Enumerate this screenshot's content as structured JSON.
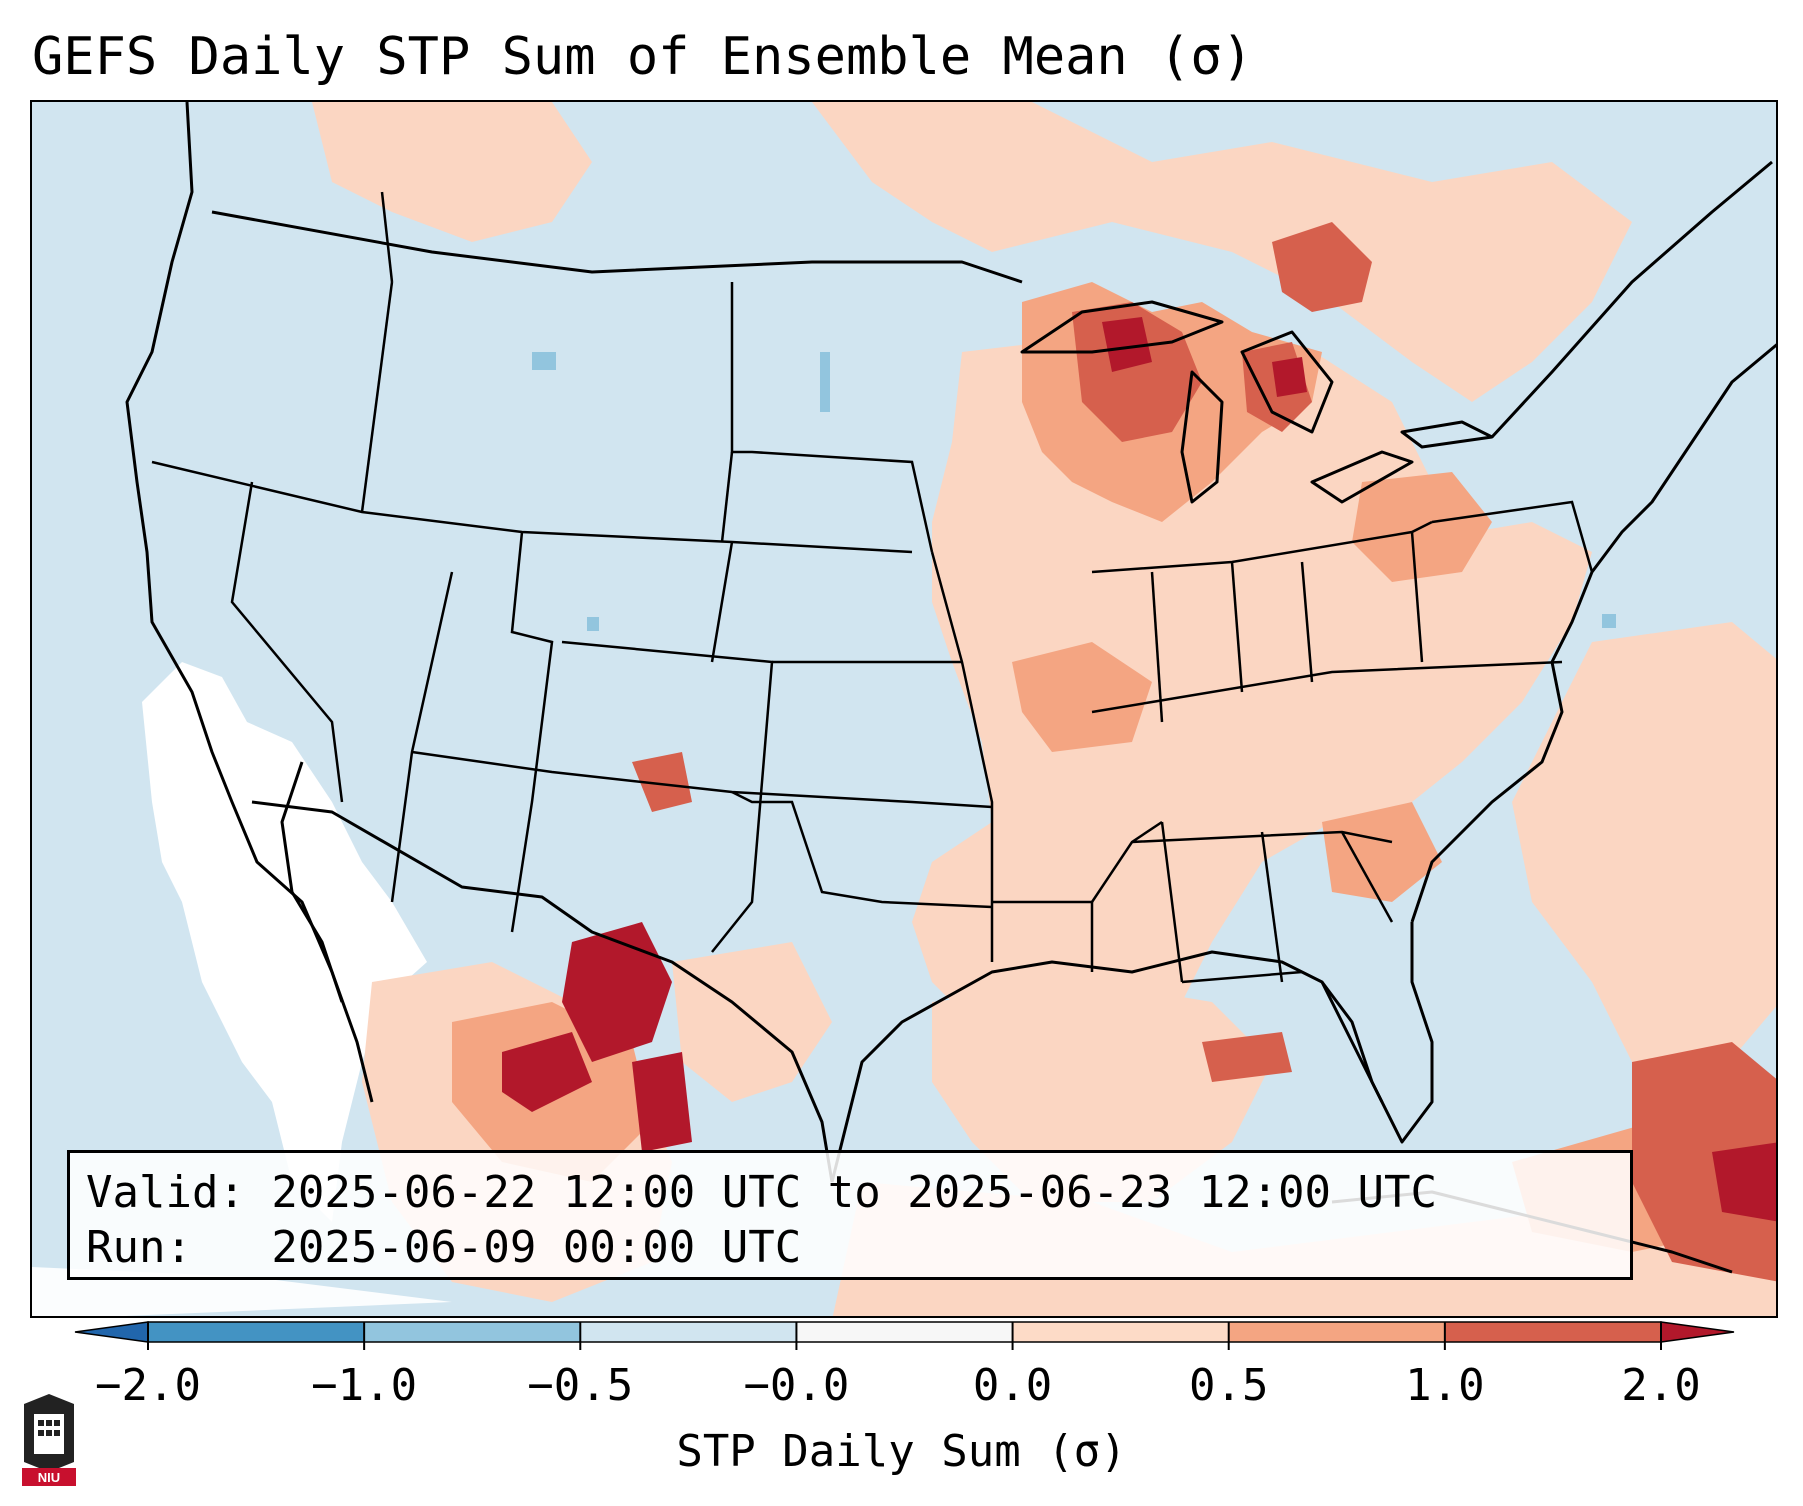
{
  "title": "GEFS Daily STP Sum of Ensemble Mean (σ)",
  "valid_line": "Valid: 2025-06-22 12:00 UTC to 2025-06-23 12:00 UTC",
  "run_line": "Run:   2025-06-09 00:00 UTC",
  "map": {
    "region": "Continental United States, northern Mexico, Gulf of Mexico, western Atlantic",
    "field": "STP daily sum anomaly (σ)",
    "colors": {
      "background": "#d1e5f0",
      "near_zero": "#ffffff",
      "weak_positive": "#fbd6c2",
      "moderate_positive": "#f4a582",
      "strong_positive": "#d6604d",
      "extreme_positive": "#b2182b",
      "weak_negative": "#92c5de",
      "borders": "#000000"
    }
  },
  "colorbar": {
    "label": "STP Daily Sum (σ)",
    "ticks": [
      "−2.0",
      "−1.0",
      "−0.5",
      "−0.0",
      "0.0",
      "0.5",
      "1.0",
      "2.0"
    ],
    "colors": [
      "#4393c3",
      "#92c5de",
      "#d1e5f0",
      "#f7f7f7",
      "#fddbc7",
      "#f4a582",
      "#d6604d"
    ],
    "under_color": "#2166ac",
    "over_color": "#b2182b"
  },
  "logo": {
    "text": "NIU"
  }
}
